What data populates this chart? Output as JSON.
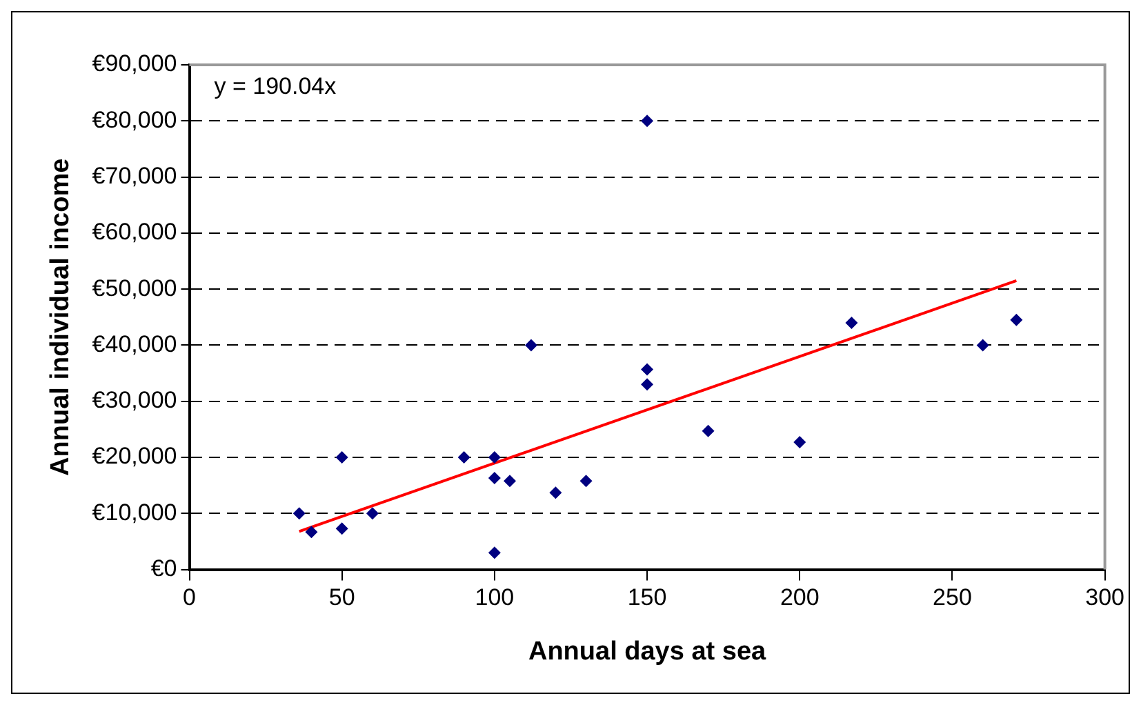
{
  "chart_data": {
    "type": "scatter",
    "xlabel": "Annual days at sea",
    "ylabel": "Annual individual income",
    "xlim": [
      0,
      300
    ],
    "xticks": [
      0,
      50,
      100,
      150,
      200,
      250,
      300
    ],
    "ylim": [
      0,
      90000
    ],
    "yticks": [
      {
        "value": 0,
        "label": "€0"
      },
      {
        "value": 10000,
        "label": "€10,000"
      },
      {
        "value": 20000,
        "label": "€20,000"
      },
      {
        "value": 30000,
        "label": "€30,000"
      },
      {
        "value": 40000,
        "label": "€40,000"
      },
      {
        "value": 50000,
        "label": "€50,000"
      },
      {
        "value": 60000,
        "label": "€60,000"
      },
      {
        "value": 70000,
        "label": "€70,000"
      },
      {
        "value": 80000,
        "label": "€80,000"
      },
      {
        "value": 90000,
        "label": "€90,000"
      }
    ],
    "grid": "y",
    "legend": false,
    "marker": "diamond",
    "annotations": [
      "y = 190.04x"
    ],
    "series": [
      {
        "color": "#000080",
        "x": [
          36,
          40,
          50,
          50,
          60,
          90,
          100,
          100,
          100,
          105,
          112,
          120,
          130,
          150,
          150,
          150,
          170,
          200,
          217,
          260,
          271
        ],
        "values": [
          10000,
          6700,
          20000,
          7300,
          10000,
          20000,
          20000,
          16300,
          3000,
          15800,
          40000,
          13700,
          15800,
          80000,
          35700,
          33000,
          24700,
          22700,
          44000,
          40000,
          44500
        ]
      },
      {
        "type": "line",
        "color": "#ff0000",
        "marker": "none",
        "line_style": "solid",
        "x": [
          36,
          271
        ],
        "values": [
          6800,
          51500
        ]
      }
    ]
  }
}
